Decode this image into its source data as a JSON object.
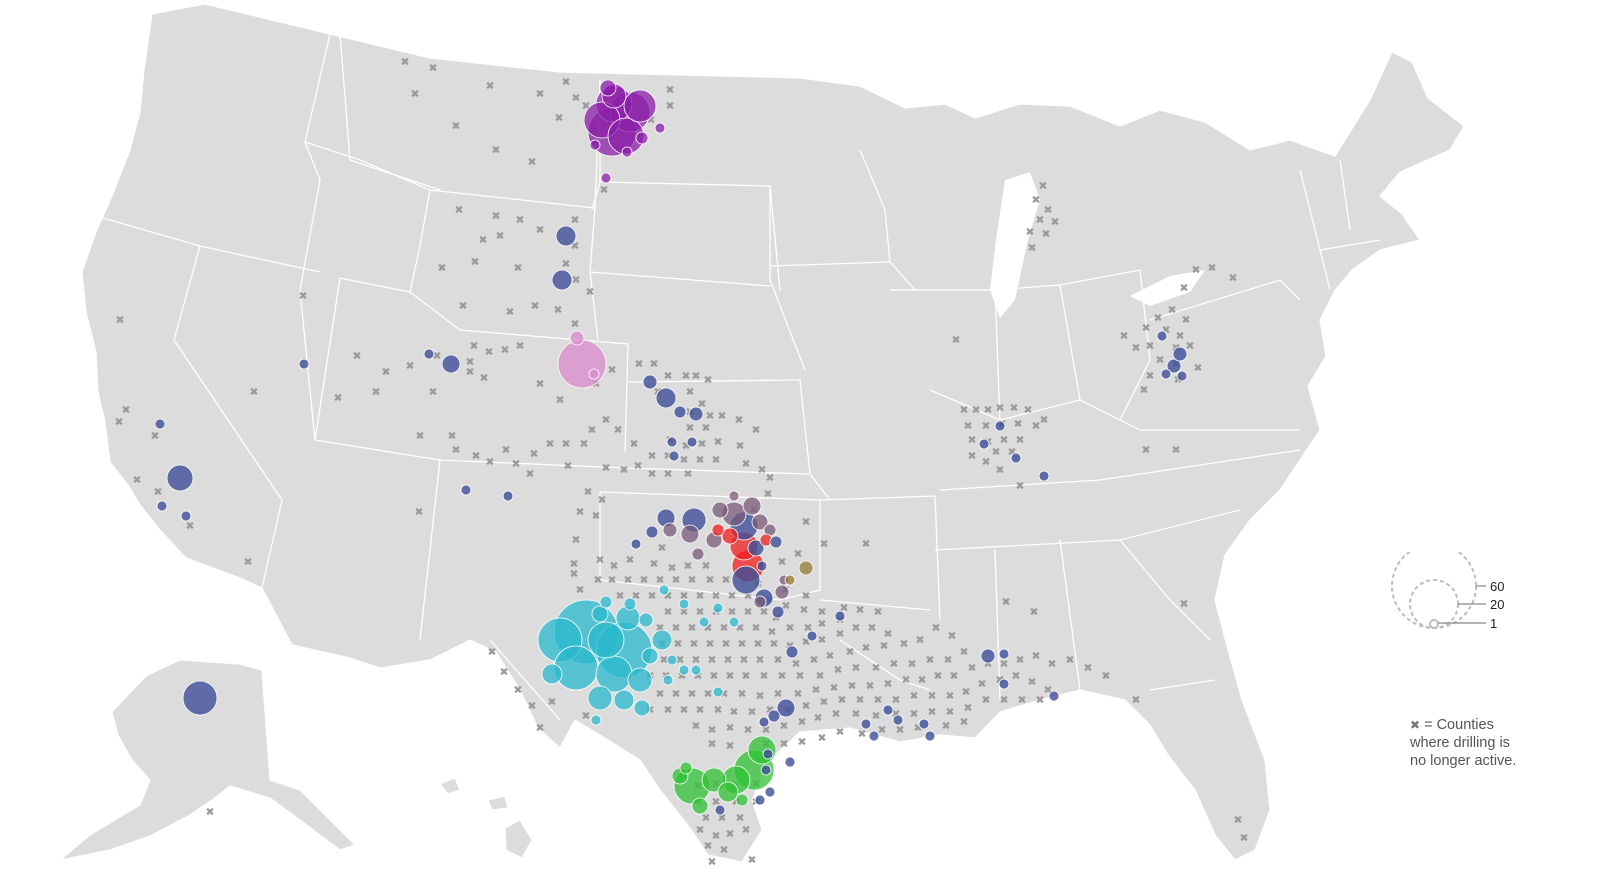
{
  "legend": {
    "size_label_large": "60",
    "size_label_mid": "20",
    "size_label_small": "1",
    "cross_symbol": "✖",
    "cross_text_line1": "= Counties",
    "cross_text_line2": "where drilling is",
    "cross_text_line3": "no longer active."
  },
  "colors": {
    "land": "#dcdcdc",
    "state_border": "#ffffff",
    "inactive_mark": "#9a9a9a",
    "bakken": "#8b1fa8",
    "niobrara": "#d98bcc",
    "permian": "#29b8cc",
    "eagle_ford": "#2fc234",
    "anadarko": "#7a5a78",
    "scoop_stack": "#f01c1c",
    "other": "#3f4f99"
  }
}
